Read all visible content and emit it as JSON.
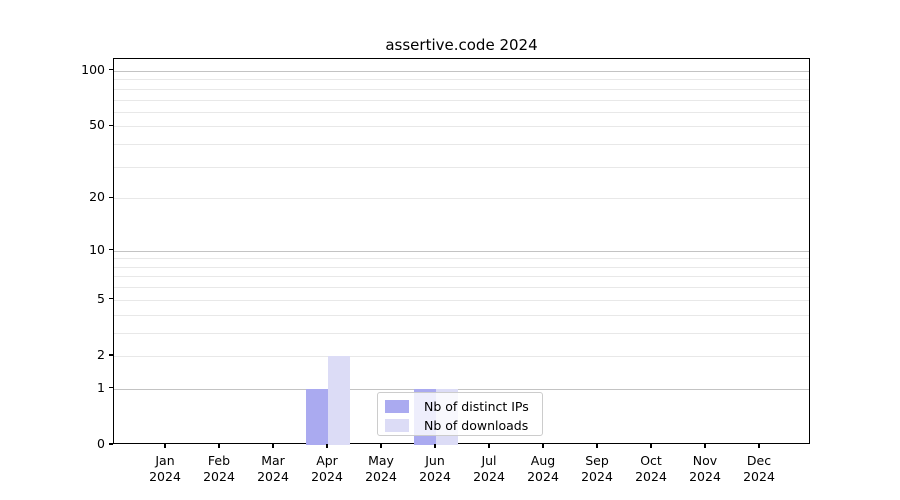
{
  "title": "assertive.code 2024",
  "chart_data": {
    "type": "bar",
    "title": "assertive.code 2024",
    "categories": [
      "Jan",
      "Feb",
      "Mar",
      "Apr",
      "May",
      "Jun",
      "Jul",
      "Aug",
      "Sep",
      "Oct",
      "Nov",
      "Dec"
    ],
    "x_tick_year": "2024",
    "series": [
      {
        "name": "Nb of distinct IPs",
        "color": "#aaaaf0",
        "values": [
          0,
          0,
          0,
          1,
          0,
          1,
          0,
          0,
          0,
          0,
          0,
          0
        ]
      },
      {
        "name": "Nb of downloads",
        "color": "#dcdcf6",
        "values": [
          0,
          0,
          0,
          2,
          0,
          1,
          0,
          0,
          0,
          0,
          0,
          0
        ]
      }
    ],
    "xlabel": "",
    "ylabel": "",
    "y_scale": "log1p",
    "ylim": [
      0,
      116
    ],
    "y_tick_values": [
      0,
      1,
      2,
      5,
      10,
      20,
      50,
      100
    ],
    "grid": {
      "enabled": true,
      "major_values": [
        1,
        10,
        100
      ],
      "minor_values": [
        2,
        3,
        4,
        5,
        6,
        7,
        8,
        9,
        20,
        30,
        40,
        50,
        60,
        70,
        80,
        90
      ]
    },
    "legend": {
      "position": "lower center",
      "entries": [
        "Nb of distinct IPs",
        "Nb of downloads"
      ]
    }
  },
  "colors": {
    "frame": "#000000",
    "grid_major": "#c3c3c3",
    "grid_minor": "#e8e8e8",
    "background": "#ffffff",
    "text": "#000000",
    "legend_border": "#cccccc"
  }
}
